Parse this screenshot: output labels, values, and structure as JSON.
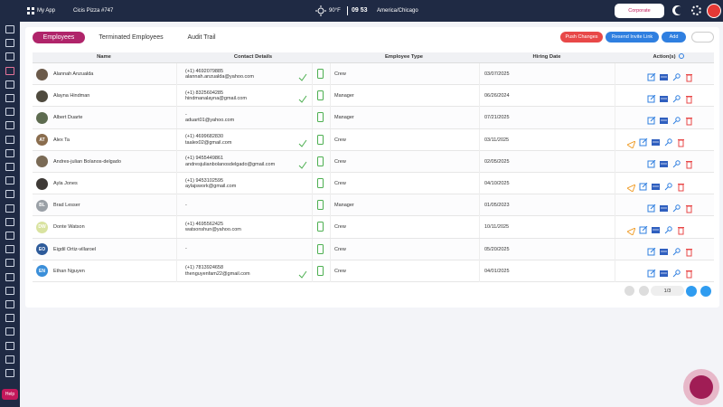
{
  "top_bar": {
    "app": "My App",
    "store": "Cicis Pizza #747",
    "temperature": "90°F",
    "time": "09 53",
    "timezone": "America/Chicago",
    "role": "Corporate"
  },
  "sidebar": {
    "help": "Help"
  },
  "tabs": [
    "Employees",
    "Terminated Employees",
    "Audit Trail"
  ],
  "buttons": [
    "Push Changes",
    "Resend Invite Link",
    "Add"
  ],
  "table": {
    "columns": [
      "Name",
      "Contact Details",
      "Employee Type",
      "Hiring Date",
      "Action(s)"
    ],
    "rows": [
      {
        "name": "Alannah Anzualda",
        "contact": [
          "(+1) 4692079885",
          "alannah.anzualda@yahoo.com"
        ],
        "type": "Crew",
        "date": "03/07/2025"
      },
      {
        "name": "Alayna Hindman",
        "contact": [
          "(+1) 8325604285",
          "hindmanalayna@gmail.com"
        ],
        "type": "Manager",
        "date": "06/26/2024"
      },
      {
        "name": "Albert Duarte",
        "contact": [
          "-",
          "aduart01@yahoo.com"
        ],
        "type": "Manager",
        "date": "07/21/2025"
      },
      {
        "name": "Alex Ta",
        "initials": "AT",
        "contact": [
          "(+1) 4699682830",
          "taalex02@gmail.com"
        ],
        "type": "Crew",
        "date": "03/11/2025"
      },
      {
        "name": "Andres-julian Bolanos-delgado",
        "contact": [
          "(+1) 9455449861",
          "andresjulianbolanosdelgado@gmail.com"
        ],
        "type": "Crew",
        "date": "02/05/2025"
      },
      {
        "name": "Ayla Jones",
        "contact": [
          "(+1) 9453102595",
          "aylajswork@gmail.com"
        ],
        "type": "Crew",
        "date": "04/10/2025"
      },
      {
        "name": "Brad Lesser",
        "initials": "BL",
        "contact": [
          "-"
        ],
        "type": "Manager",
        "date": "01/05/2023"
      },
      {
        "name": "Donte Watson",
        "initials": "DW",
        "contact": [
          "(+1) 4695562425",
          "watsonshun@yahoo.com"
        ],
        "type": "Crew",
        "date": "10/11/2025"
      },
      {
        "name": "Eigdil Ortiz-villaroel",
        "initials": "EO",
        "contact": [
          "-"
        ],
        "type": "Crew",
        "date": "05/20/2025"
      },
      {
        "name": "Ethan Nguyen",
        "initials": "EN",
        "contact": [
          "(+1) 7813924658",
          "thenguyenfam22@gmail.com"
        ],
        "type": "Crew",
        "date": "04/01/2025"
      }
    ]
  },
  "pagination": {
    "page": "1/3"
  }
}
